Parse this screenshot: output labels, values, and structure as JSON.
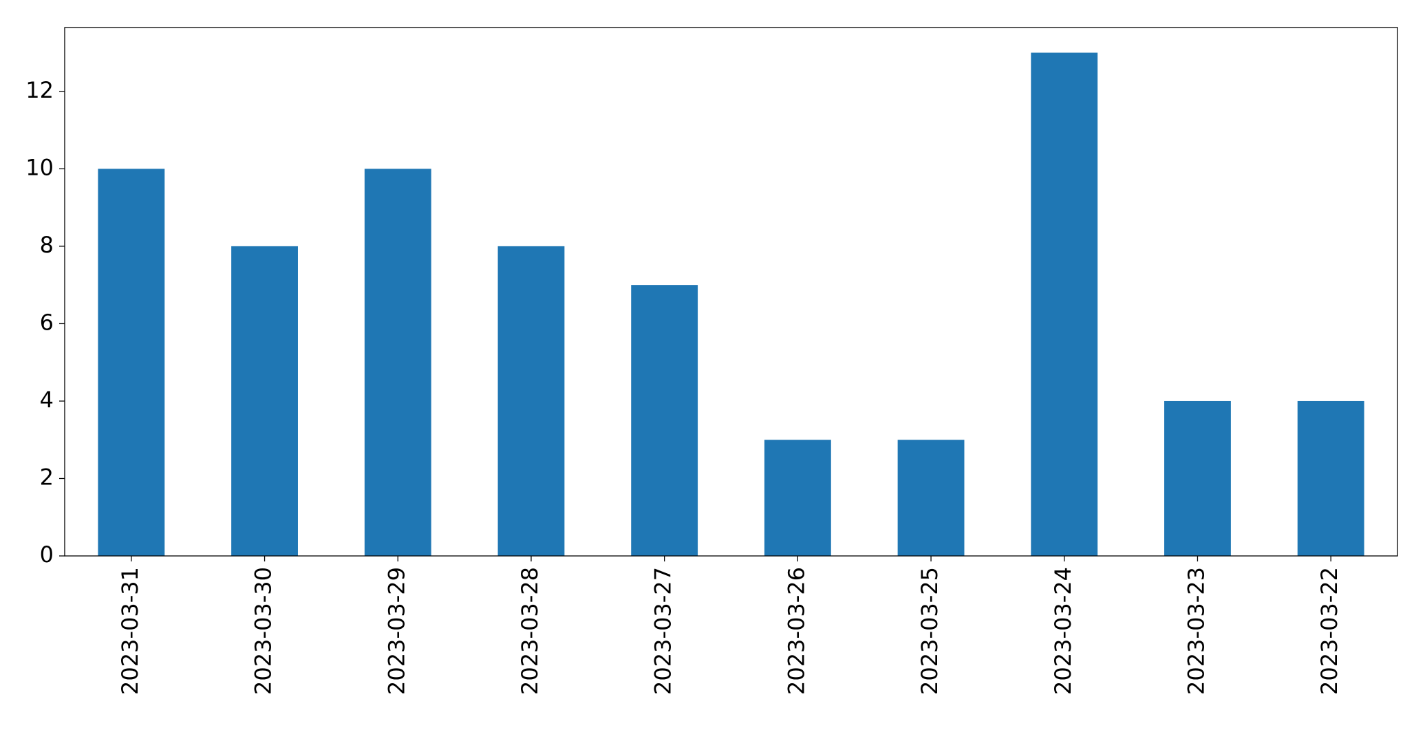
{
  "chart_data": {
    "type": "bar",
    "categories": [
      "2023-03-31",
      "2023-03-30",
      "2023-03-29",
      "2023-03-28",
      "2023-03-27",
      "2023-03-26",
      "2023-03-25",
      "2023-03-24",
      "2023-03-23",
      "2023-03-22"
    ],
    "values": [
      10,
      8,
      10,
      8,
      7,
      3,
      3,
      13,
      4,
      4
    ],
    "color": "#1f77b4",
    "ylim": [
      0,
      13.65
    ],
    "yticks": [
      0,
      2,
      4,
      6,
      8,
      10,
      12
    ],
    "grid": false
  }
}
